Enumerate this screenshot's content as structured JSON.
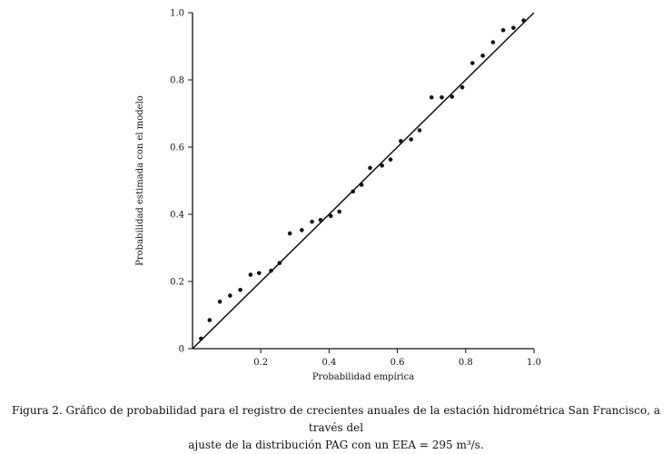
{
  "chart_data": {
    "type": "scatter",
    "title": "",
    "xlabel": "Probabilidad empírica",
    "ylabel": "Probabilidad estimada con el modelo",
    "xlim": [
      0,
      1.0
    ],
    "ylim": [
      0,
      1.0
    ],
    "x_ticks": [
      0.2,
      0.4,
      0.6,
      0.8,
      1.0
    ],
    "x_tick_labels": [
      "0.2",
      "0.4",
      "0.6",
      "0.8",
      "1.0"
    ],
    "y_ticks": [
      0,
      0.2,
      0.4,
      0.6,
      0.8,
      1.0
    ],
    "y_tick_labels": [
      "0",
      "0.2",
      "0.4",
      "0.6",
      "0.8",
      "1.0"
    ],
    "grid": false,
    "legend": "none",
    "reference_line": {
      "from": [
        0,
        0
      ],
      "to": [
        1.0,
        1.0
      ]
    },
    "series": [
      {
        "points": [
          [
            0.025,
            0.03
          ],
          [
            0.05,
            0.085
          ],
          [
            0.08,
            0.14
          ],
          [
            0.11,
            0.158
          ],
          [
            0.14,
            0.175
          ],
          [
            0.17,
            0.22
          ],
          [
            0.195,
            0.225
          ],
          [
            0.23,
            0.232
          ],
          [
            0.255,
            0.255
          ],
          [
            0.285,
            0.343
          ],
          [
            0.32,
            0.353
          ],
          [
            0.35,
            0.378
          ],
          [
            0.375,
            0.383
          ],
          [
            0.405,
            0.395
          ],
          [
            0.43,
            0.408
          ],
          [
            0.47,
            0.468
          ],
          [
            0.495,
            0.488
          ],
          [
            0.52,
            0.538
          ],
          [
            0.555,
            0.545
          ],
          [
            0.58,
            0.563
          ],
          [
            0.61,
            0.618
          ],
          [
            0.64,
            0.623
          ],
          [
            0.665,
            0.65
          ],
          [
            0.7,
            0.748
          ],
          [
            0.73,
            0.748
          ],
          [
            0.76,
            0.75
          ],
          [
            0.79,
            0.778
          ],
          [
            0.82,
            0.85
          ],
          [
            0.85,
            0.872
          ],
          [
            0.88,
            0.912
          ],
          [
            0.91,
            0.948
          ],
          [
            0.94,
            0.955
          ],
          [
            0.97,
            0.977
          ]
        ]
      }
    ]
  },
  "caption": {
    "line1": "Figura 2. Gráfico de probabilidad para el registro de crecientes anuales de la estación hidrométrica San Francisco, a través del",
    "line2": "ajuste de la distribución PAG con un EEA = 295 m³/s."
  }
}
